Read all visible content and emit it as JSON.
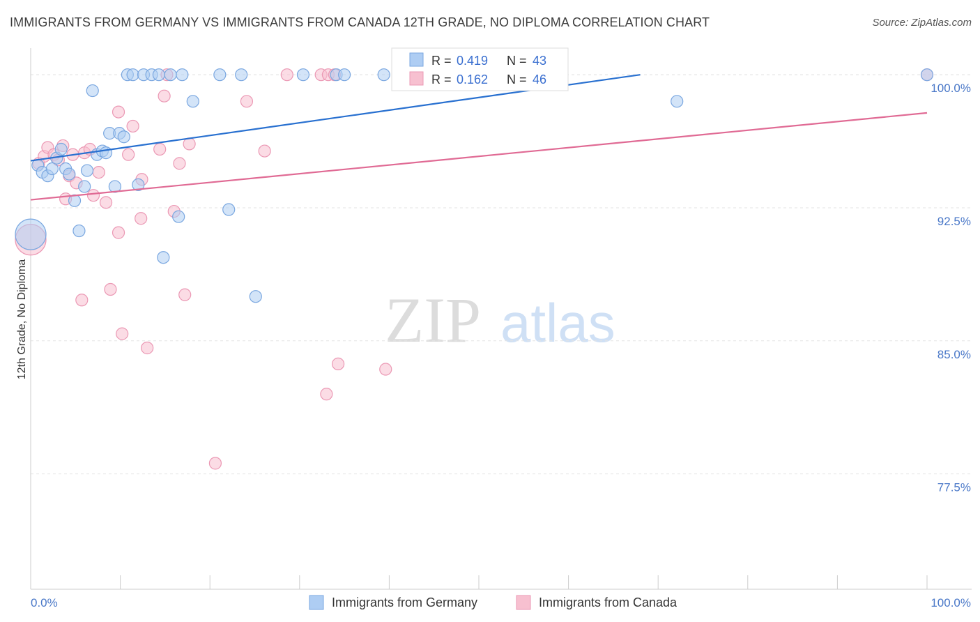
{
  "title": "IMMIGRANTS FROM GERMANY VS IMMIGRANTS FROM CANADA 12TH GRADE, NO DIPLOMA CORRELATION CHART",
  "source": "Source: ZipAtlas.com",
  "watermark": {
    "zip": "ZIP",
    "atlas": "atlas"
  },
  "colors": {
    "germany_fill": "#aecdf3",
    "germany_stroke": "#7aa7e0",
    "germany_line": "#2870d0",
    "canada_fill": "#f7c0d0",
    "canada_stroke": "#eb98b4",
    "canada_line": "#e06a94",
    "tick_label": "#4a78c8",
    "grid": "#e3e3e3",
    "axis_text": "#333333"
  },
  "stats_box": {
    "germany": {
      "r_label": "R = ",
      "r_value": "0.419",
      "n_label": "N = ",
      "n_value": "43"
    },
    "canada": {
      "r_label": "R = ",
      "r_value": "0.162",
      "n_label": "N = ",
      "n_value": "46"
    }
  },
  "chart_data": {
    "type": "scatter",
    "title": "IMMIGRANTS FROM GERMANY VS IMMIGRANTS FROM CANADA 12TH GRADE, NO DIPLOMA CORRELATION CHART",
    "xlabel": "",
    "ylabel": "12th Grade, No Diploma",
    "xlim": [
      0,
      100
    ],
    "ylim": [
      71.0,
      101.5
    ],
    "x_tick_labels": [
      "0.0%",
      "100.0%"
    ],
    "y_ticks": [
      77.5,
      85.0,
      92.5,
      100.0
    ],
    "y_tick_labels": [
      "77.5%",
      "85.0%",
      "92.5%",
      "100.0%"
    ],
    "grid": true,
    "legend_position": "bottom-center",
    "series": [
      {
        "name": "Immigrants from Germany",
        "r": 0.419,
        "n": 43,
        "trend": {
          "x": [
            0,
            68
          ],
          "y": [
            95.15,
            100.0
          ]
        },
        "points": [
          {
            "x": 0.0,
            "y": 91.0,
            "big": true
          },
          {
            "x": 0.8,
            "y": 94.9
          },
          {
            "x": 1.3,
            "y": 94.5
          },
          {
            "x": 1.9,
            "y": 94.3
          },
          {
            "x": 2.4,
            "y": 94.7
          },
          {
            "x": 2.9,
            "y": 95.3
          },
          {
            "x": 3.4,
            "y": 95.8
          },
          {
            "x": 3.9,
            "y": 94.7
          },
          {
            "x": 4.3,
            "y": 94.4
          },
          {
            "x": 4.9,
            "y": 92.9
          },
          {
            "x": 5.4,
            "y": 91.2
          },
          {
            "x": 6.0,
            "y": 93.7
          },
          {
            "x": 6.3,
            "y": 94.6
          },
          {
            "x": 6.9,
            "y": 99.1
          },
          {
            "x": 7.4,
            "y": 95.5
          },
          {
            "x": 8.0,
            "y": 95.7
          },
          {
            "x": 8.4,
            "y": 95.6
          },
          {
            "x": 8.8,
            "y": 96.7
          },
          {
            "x": 9.4,
            "y": 93.7
          },
          {
            "x": 9.9,
            "y": 96.7
          },
          {
            "x": 10.4,
            "y": 96.5
          },
          {
            "x": 10.8,
            "y": 100.0
          },
          {
            "x": 11.4,
            "y": 100.0
          },
          {
            "x": 12.0,
            "y": 93.8
          },
          {
            "x": 12.6,
            "y": 100.0
          },
          {
            "x": 13.5,
            "y": 100.0
          },
          {
            "x": 14.3,
            "y": 100.0
          },
          {
            "x": 14.8,
            "y": 89.7
          },
          {
            "x": 15.6,
            "y": 100.0
          },
          {
            "x": 16.5,
            "y": 92.0
          },
          {
            "x": 16.9,
            "y": 100.0
          },
          {
            "x": 18.1,
            "y": 98.5
          },
          {
            "x": 21.1,
            "y": 100.0
          },
          {
            "x": 22.1,
            "y": 92.4
          },
          {
            "x": 23.5,
            "y": 100.0
          },
          {
            "x": 25.1,
            "y": 87.5
          },
          {
            "x": 30.4,
            "y": 100.0
          },
          {
            "x": 34.1,
            "y": 100.0
          },
          {
            "x": 35.0,
            "y": 100.0
          },
          {
            "x": 39.4,
            "y": 100.0
          },
          {
            "x": 48.5,
            "y": 100.0
          },
          {
            "x": 72.1,
            "y": 98.5
          },
          {
            "x": 100.0,
            "y": 100.0
          }
        ]
      },
      {
        "name": "Immigrants from Canada",
        "r": 0.162,
        "n": 46,
        "trend": {
          "x": [
            0,
            100
          ],
          "y": [
            92.95,
            97.85
          ]
        },
        "points": [
          {
            "x": 0.0,
            "y": 90.7,
            "big": true
          },
          {
            "x": 0.9,
            "y": 95.0
          },
          {
            "x": 1.5,
            "y": 95.4
          },
          {
            "x": 1.9,
            "y": 95.9
          },
          {
            "x": 2.6,
            "y": 95.5
          },
          {
            "x": 3.1,
            "y": 95.2
          },
          {
            "x": 3.6,
            "y": 96.0
          },
          {
            "x": 3.9,
            "y": 93.0
          },
          {
            "x": 4.3,
            "y": 94.3
          },
          {
            "x": 4.7,
            "y": 95.5
          },
          {
            "x": 5.1,
            "y": 93.9
          },
          {
            "x": 5.7,
            "y": 87.3
          },
          {
            "x": 6.0,
            "y": 95.6
          },
          {
            "x": 6.6,
            "y": 95.8
          },
          {
            "x": 7.0,
            "y": 93.2
          },
          {
            "x": 7.6,
            "y": 94.5
          },
          {
            "x": 8.4,
            "y": 92.8
          },
          {
            "x": 8.9,
            "y": 87.9
          },
          {
            "x": 9.8,
            "y": 97.9
          },
          {
            "x": 9.8,
            "y": 91.1
          },
          {
            "x": 10.2,
            "y": 85.4
          },
          {
            "x": 10.9,
            "y": 95.5
          },
          {
            "x": 11.4,
            "y": 97.1
          },
          {
            "x": 12.3,
            "y": 91.9
          },
          {
            "x": 12.4,
            "y": 94.1
          },
          {
            "x": 13.0,
            "y": 84.6
          },
          {
            "x": 14.4,
            "y": 95.8
          },
          {
            "x": 14.9,
            "y": 98.8
          },
          {
            "x": 15.2,
            "y": 100.0
          },
          {
            "x": 16.0,
            "y": 92.3
          },
          {
            "x": 16.6,
            "y": 95.0
          },
          {
            "x": 17.2,
            "y": 87.6
          },
          {
            "x": 17.7,
            "y": 96.1
          },
          {
            "x": 20.6,
            "y": 78.1
          },
          {
            "x": 24.1,
            "y": 98.5
          },
          {
            "x": 26.1,
            "y": 95.7
          },
          {
            "x": 28.6,
            "y": 100.0
          },
          {
            "x": 32.4,
            "y": 100.0
          },
          {
            "x": 33.2,
            "y": 100.0
          },
          {
            "x": 33.0,
            "y": 82.0
          },
          {
            "x": 33.9,
            "y": 100.0
          },
          {
            "x": 34.3,
            "y": 83.7
          },
          {
            "x": 39.6,
            "y": 83.4
          },
          {
            "x": 46.9,
            "y": 100.0
          },
          {
            "x": 49.9,
            "y": 100.0
          },
          {
            "x": 100.0,
            "y": 100.0
          }
        ]
      }
    ]
  }
}
